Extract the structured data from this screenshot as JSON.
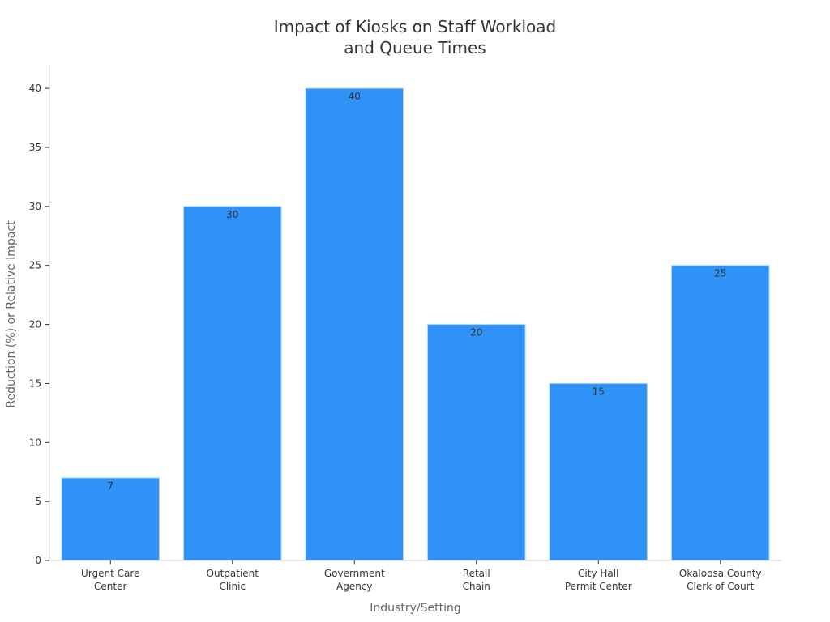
{
  "chart_data": {
    "type": "bar",
    "title": [
      "Impact of Kiosks on Staff Workload",
      "and Queue Times"
    ],
    "xlabel": "Industry/Setting",
    "ylabel": "Reduction (%) or Relative Impact",
    "categories": [
      [
        "Urgent Care",
        "Center"
      ],
      [
        "Outpatient",
        "Clinic"
      ],
      [
        "Government",
        "Agency"
      ],
      [
        "Retail",
        "Chain"
      ],
      [
        "City Hall",
        "Permit Center"
      ],
      [
        "Okaloosa County",
        "Clerk of Court"
      ]
    ],
    "values": [
      7,
      30,
      40,
      20,
      15,
      25
    ],
    "ylim": [
      0,
      42
    ],
    "yticks": [
      0,
      5,
      10,
      15,
      20,
      25,
      30,
      35,
      40
    ],
    "bar_color": "#2f92f7",
    "bar_edge_color": "#a9d1fb",
    "grid": false,
    "legend": "none"
  }
}
